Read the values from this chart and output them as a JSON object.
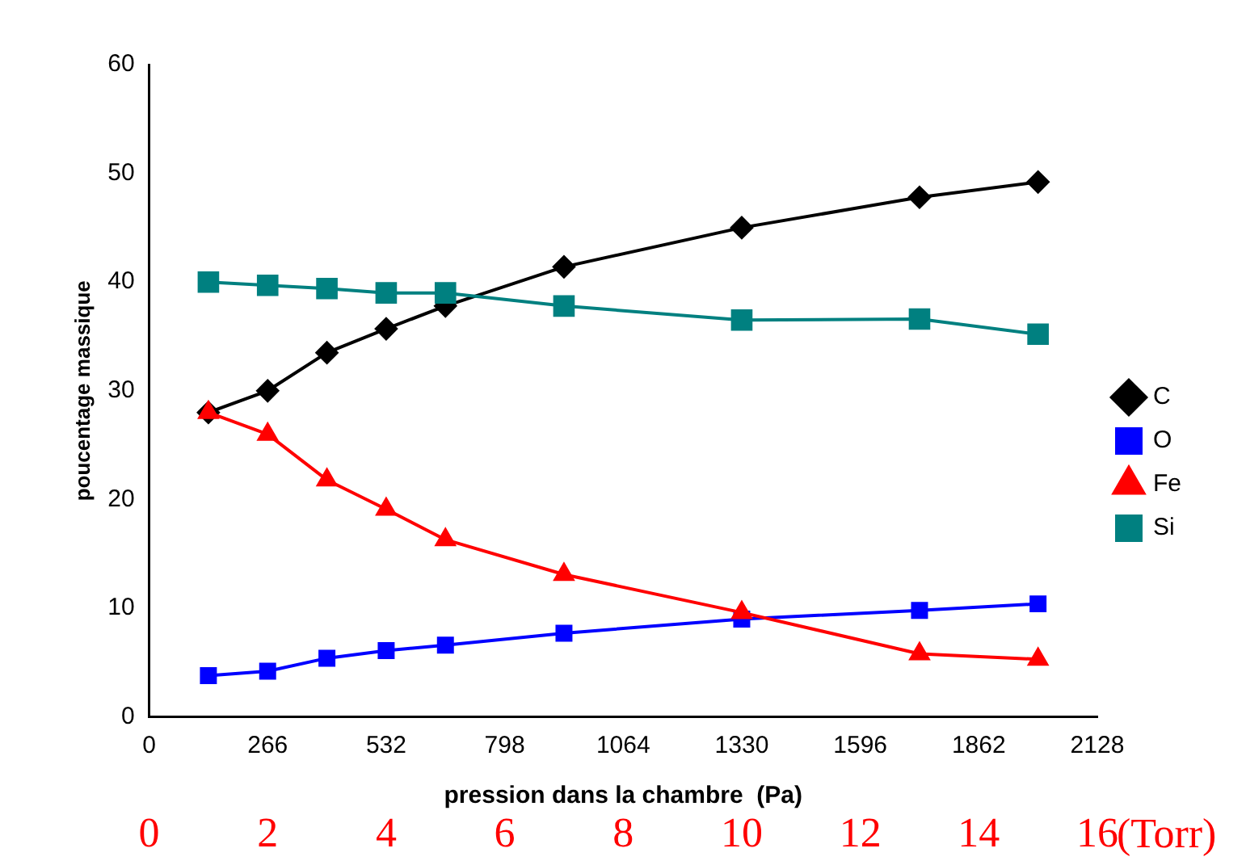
{
  "chart_data": {
    "type": "line",
    "xlabel": "pression dans la chambre  (Pa)",
    "ylabel": "poucentage massique",
    "x2label": "(Torr)",
    "x": [
      133,
      266,
      399,
      532,
      665,
      931,
      1330,
      1729,
      1995
    ],
    "series": [
      {
        "name": "C",
        "color": "#000000",
        "marker": "diamond",
        "values": [
          28,
          30,
          33.5,
          35.7,
          37.8,
          41.4,
          45,
          47.8,
          49.2
        ]
      },
      {
        "name": "O",
        "color": "#0000ff",
        "marker": "square",
        "values": [
          3.8,
          4.2,
          5.4,
          6.1,
          6.6,
          7.7,
          9,
          9.8,
          10.4
        ]
      },
      {
        "name": "Fe",
        "color": "#ff0000",
        "marker": "triangle",
        "values": [
          28,
          26,
          21.8,
          19.1,
          16.3,
          13.1,
          9.6,
          5.8,
          5.3
        ]
      },
      {
        "name": "Si",
        "color": "#008080",
        "marker": "square",
        "values": [
          40,
          39.7,
          39.4,
          39,
          39,
          37.8,
          36.5,
          36.6,
          35.2
        ]
      }
    ],
    "xlim": [
      0,
      2128
    ],
    "xticks": [
      0,
      266,
      532,
      798,
      1064,
      1330,
      1596,
      1862,
      2128
    ],
    "x2lim": [
      0,
      16
    ],
    "x2ticks": [
      0,
      2,
      4,
      6,
      8,
      10,
      12,
      14,
      16
    ],
    "ylim": [
      0,
      60
    ],
    "yticks": [
      0,
      10,
      20,
      30,
      40,
      50,
      60
    ],
    "grid": false,
    "legend": "right",
    "line_style": "solid"
  }
}
